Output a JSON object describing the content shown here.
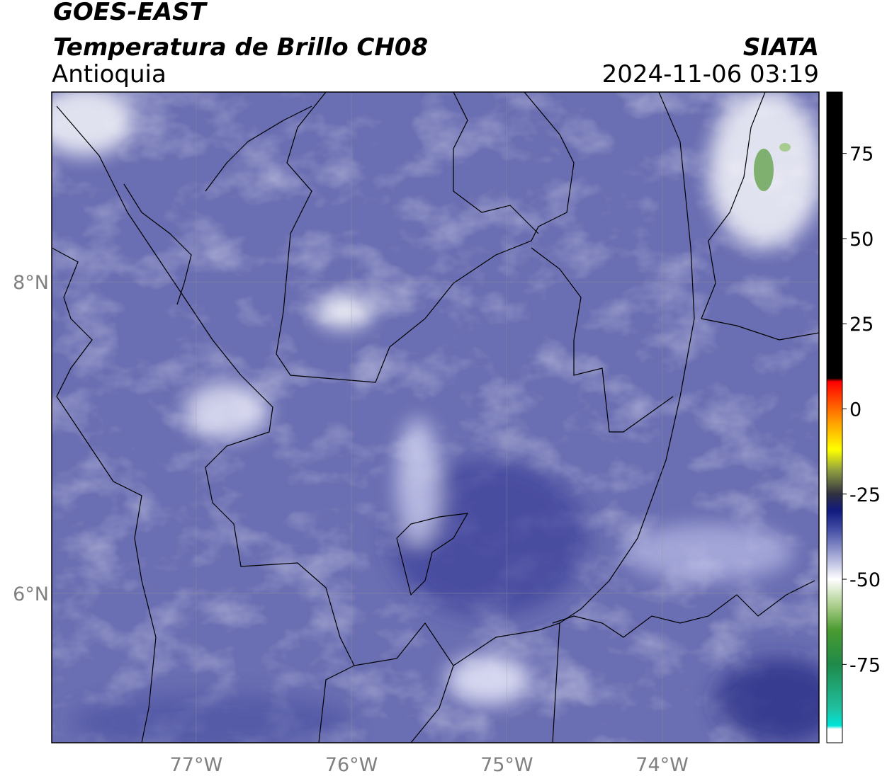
{
  "header": {
    "title": "GOES-EAST",
    "subtitle": "Temperatura de Brillo CH08",
    "region": "Antioquia",
    "source": "SIATA",
    "datetime": "2024-11-06 03:19"
  },
  "map": {
    "xlim": [
      -77.93,
      -72.99
    ],
    "ylim": [
      5.04,
      9.22
    ],
    "xticks": [
      {
        "value": -77,
        "label": "77°W"
      },
      {
        "value": -76,
        "label": "76°W"
      },
      {
        "value": -75,
        "label": "75°W"
      },
      {
        "value": -74,
        "label": "74°W"
      }
    ],
    "yticks": [
      {
        "value": 8,
        "label": "8°N"
      },
      {
        "value": 6,
        "label": "6°N"
      }
    ],
    "grid": true
  },
  "colorbar": {
    "lim": [
      -98,
      93
    ],
    "ticks": [
      75,
      50,
      25,
      0,
      -25,
      -50,
      -75
    ],
    "stops": [
      {
        "value": -98,
        "color": "#ffffff"
      },
      {
        "value": -94,
        "color": "#ffffff"
      },
      {
        "value": -93,
        "color": "#00e5d8"
      },
      {
        "value": -88,
        "color": "#20c0a0"
      },
      {
        "value": -75,
        "color": "#1f8a4a"
      },
      {
        "value": -65,
        "color": "#4a9a30"
      },
      {
        "value": -58,
        "color": "#a8cc88"
      },
      {
        "value": -50,
        "color": "#ffffff"
      },
      {
        "value": -44,
        "color": "#b0b4dc"
      },
      {
        "value": -36,
        "color": "#4a55a8"
      },
      {
        "value": -30,
        "color": "#101a80"
      },
      {
        "value": -25,
        "color": "#303040"
      },
      {
        "value": -18,
        "color": "#90a040"
      },
      {
        "value": -12,
        "color": "#ffff00"
      },
      {
        "value": -4,
        "color": "#ffa000"
      },
      {
        "value": 8,
        "color": "#ff0000"
      },
      {
        "value": 9,
        "color": "#000000"
      },
      {
        "value": 93,
        "color": "#000000"
      }
    ]
  }
}
